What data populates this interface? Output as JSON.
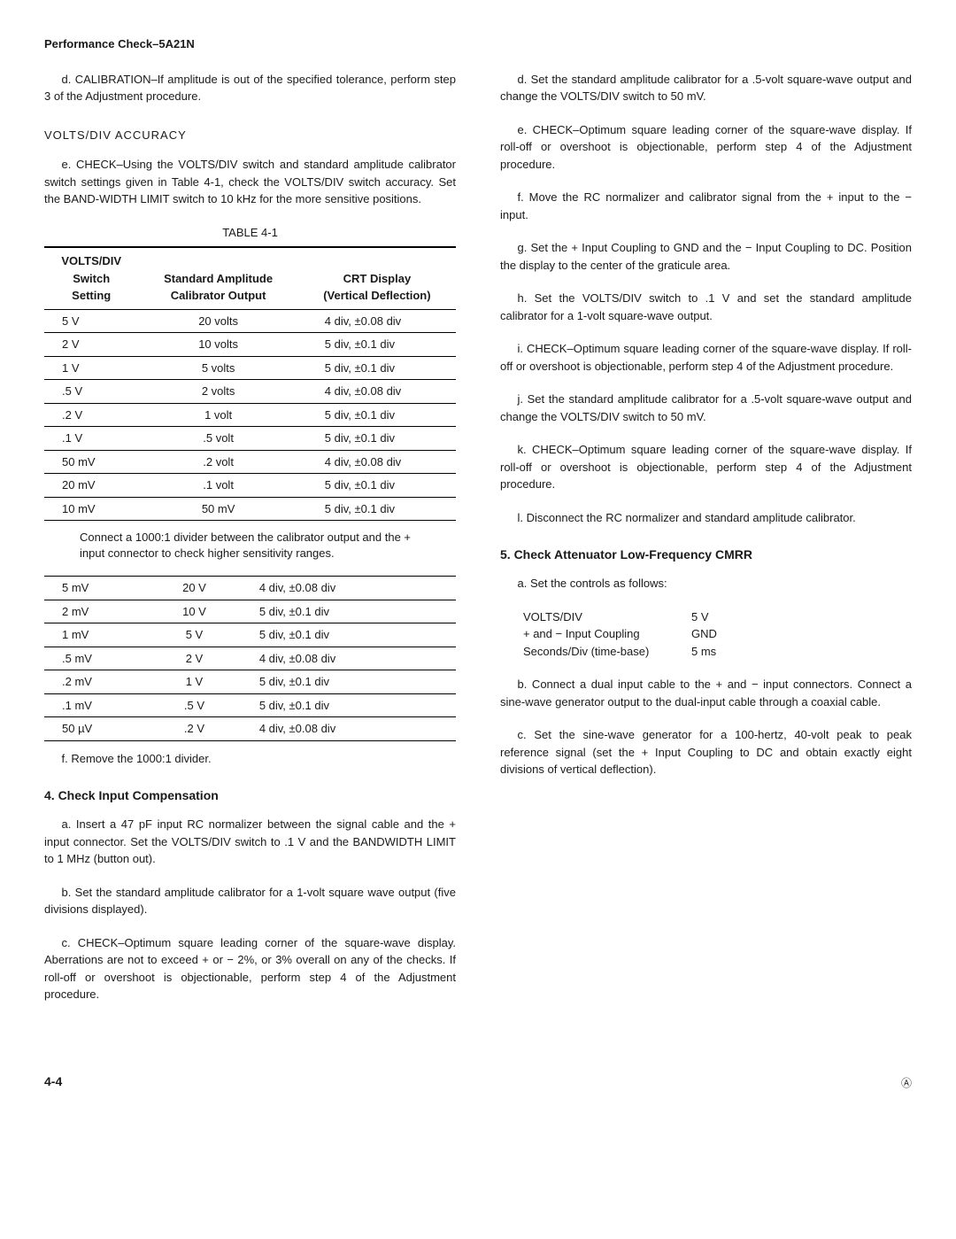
{
  "header": "Performance Check–5A21N",
  "left": {
    "p_d": "d. CALIBRATION–If amplitude is out of the specified tolerance, perform step 3 of the Adjustment procedure.",
    "sub1": "VOLTS/DIV ACCURACY",
    "p_e": "e. CHECK–Using the VOLTS/DIV switch and standard amplitude calibrator switch settings given in Table 4-1, check the VOLTS/DIV switch accuracy. Set the BAND-WIDTH LIMIT switch to 10 kHz for the more sensitive positions.",
    "table_caption": "TABLE 4-1",
    "th1a": "VOLTS/DIV",
    "th1b": "Switch",
    "th1c": "Setting",
    "th2a": "Standard Amplitude",
    "th2b": "Calibrator Output",
    "th3a": "CRT Display",
    "th3b": "(Vertical Deflection)",
    "rows1": [
      [
        "5 V",
        "20 volts",
        "4 div, ±0.08 div"
      ],
      [
        "2 V",
        "10 volts",
        "5 div, ±0.1 div"
      ],
      [
        "1 V",
        "5 volts",
        "5 div, ±0.1 div"
      ],
      [
        ".5 V",
        "2 volts",
        "4 div, ±0.08 div"
      ],
      [
        ".2 V",
        "1 volt",
        "5 div, ±0.1 div"
      ],
      [
        ".1 V",
        ".5 volt",
        "5 div, ±0.1 div"
      ],
      [
        "50 mV",
        ".2 volt",
        "4 div, ±0.08 div"
      ],
      [
        "20 mV",
        ".1 volt",
        "5 div, ±0.1 div"
      ],
      [
        "10 mV",
        "50 mV",
        "5 div, ±0.1 div"
      ]
    ],
    "table_note": "Connect a 1000:1 divider between the calibrator output and the + input connector to check higher sensitivity ranges.",
    "rows2": [
      [
        "5 mV",
        "20 V",
        "4 div, ±0.08 div"
      ],
      [
        "2 mV",
        "10 V",
        "5 div, ±0.1 div"
      ],
      [
        "1 mV",
        "5 V",
        "5 div, ±0.1 div"
      ],
      [
        ".5 mV",
        "2 V",
        "4 div, ±0.08 div"
      ],
      [
        ".2 mV",
        "1 V",
        "5 div, ±0.1 div"
      ],
      [
        ".1 mV",
        ".5 V",
        "5 div, ±0.1 div"
      ],
      [
        "50 µV",
        ".2 V",
        "4 div, ±0.08 div"
      ]
    ],
    "p_f": "f. Remove the 1000:1 divider.",
    "sec4": "4. Check Input Compensation",
    "p4a": "a. Insert a 47 pF input RC normalizer between the signal cable and the + input connector. Set the VOLTS/DIV switch to .1 V and the BANDWIDTH LIMIT to 1 MHz (button out).",
    "p4b": "b. Set the standard amplitude calibrator for a 1-volt square wave output (five divisions displayed).",
    "p4c": "c. CHECK–Optimum square leading corner of the square-wave display. Aberrations are not to exceed + or − 2%, or 3% overall on any of the checks. If roll-off or overshoot is objectionable, perform step 4 of the Adjustment procedure."
  },
  "right": {
    "p_d": "d. Set the standard amplitude calibrator for a .5-volt square-wave output and change the VOLTS/DIV switch to 50 mV.",
    "p_e": "e. CHECK–Optimum square leading corner of the square-wave display. If roll-off or overshoot is objectionable, perform step 4 of the Adjustment procedure.",
    "p_f": "f. Move the RC normalizer and calibrator signal from the + input to the − input.",
    "p_g": "g. Set the + Input Coupling to GND and the − Input Coupling to DC. Position the display to the center of the graticule area.",
    "p_h": "h. Set the VOLTS/DIV switch to .1 V and set the standard amplitude calibrator for a 1-volt square-wave output.",
    "p_i": "i. CHECK–Optimum square leading corner of the square-wave display. If roll-off or overshoot is objectionable, perform step 4 of the Adjustment procedure.",
    "p_j": "j. Set the standard amplitude calibrator for a .5-volt square-wave output and change the VOLTS/DIV switch to 50 mV.",
    "p_k": "k. CHECK–Optimum square leading corner of the square-wave display. If roll-off or overshoot is objectionable, perform step 4 of the Adjustment procedure.",
    "p_l": "l. Disconnect the RC normalizer and standard amplitude calibrator.",
    "sec5": "5. Check Attenuator Low-Frequency CMRR",
    "p5a": "a. Set the controls as follows:",
    "set1k": "VOLTS/DIV",
    "set1v": "5 V",
    "set2k": "+ and − Input Coupling",
    "set2v": "GND",
    "set3k": "Seconds/Div (time-base)",
    "set3v": "5 ms",
    "p5b": "b. Connect a dual input cable to the + and − input connectors. Connect a sine-wave generator output to the dual-input cable through a coaxial cable.",
    "p5c": "c. Set the sine-wave generator for a 100-hertz, 40-volt peak to peak reference signal (set the + Input Coupling to DC and obtain exactly eight divisions of vertical deflection)."
  },
  "page_num": "4-4",
  "copyright": "Ⓐ"
}
